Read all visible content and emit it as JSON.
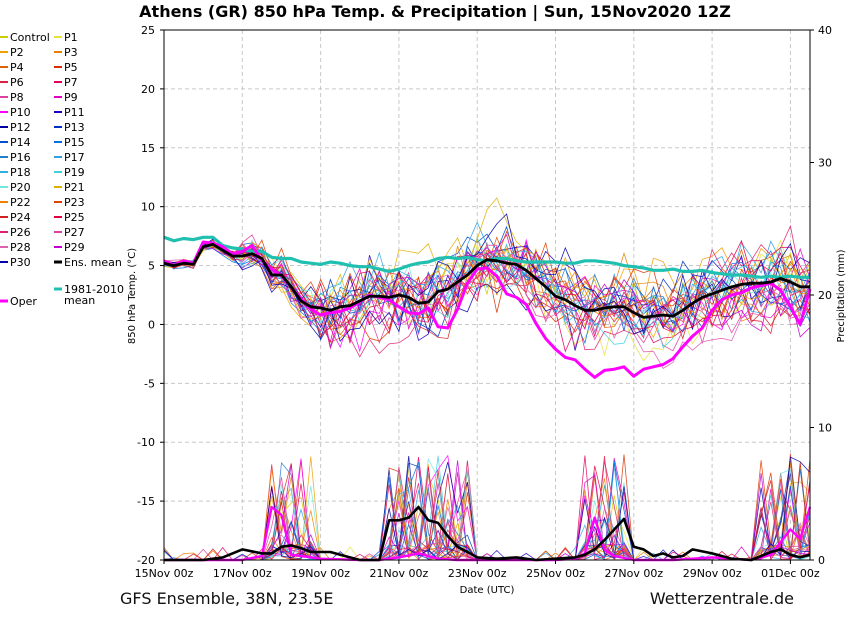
{
  "title": "Athens  (GR)  850 hPa Temp. & Precipitation | Sun, 15Nov2020 12Z",
  "footer": {
    "left": "GFS Ensemble, 38N, 23.5E",
    "right": "Wetterzentrale.de"
  },
  "colors": {
    "ens_mean": "#000000",
    "climate_mean": "#20c0b0",
    "oper": "#ff00ff",
    "grid": "#c8c8c8"
  },
  "chart_data": {
    "type": "line",
    "title": "Athens  (GR)  850 hPa Temp. & Precipitation | Sun, 15Nov2020 12Z",
    "xlabel": "Date (UTC)",
    "ylabel_left": "850 hPa Temp. (°C)",
    "ylabel_right": "Precipitation (mm)",
    "ylim_left": [
      -20,
      25
    ],
    "ylim_right": [
      0,
      40
    ],
    "xlim_days": [
      0,
      16.5
    ],
    "x_tick_labels": [
      "15Nov 00z",
      "17Nov 00z",
      "19Nov 00z",
      "21Nov 00z",
      "23Nov 00z",
      "25Nov 00z",
      "27Nov 00z",
      "29Nov 00z",
      "01Dec 00z"
    ],
    "y_ticks_left": [
      25,
      20,
      15,
      10,
      5,
      0,
      -5,
      -10,
      -15,
      -20
    ],
    "y_ticks_right": [
      40,
      30,
      20,
      10,
      0
    ],
    "grid": true,
    "legend_position": "left",
    "legend": [
      {
        "label": "Control",
        "color": "#cccc00"
      },
      {
        "label": "P1",
        "color": "#e8e040"
      },
      {
        "label": "P2",
        "color": "#f0a000"
      },
      {
        "label": "P3",
        "color": "#e88000"
      },
      {
        "label": "P4",
        "color": "#e06000"
      },
      {
        "label": "P5",
        "color": "#d83000"
      },
      {
        "label": "P6",
        "color": "#e02040"
      },
      {
        "label": "P7",
        "color": "#e00060"
      },
      {
        "label": "P8",
        "color": "#e040a0"
      },
      {
        "label": "P9",
        "color": "#e000c0"
      },
      {
        "label": "P10",
        "color": "#ff00ff"
      },
      {
        "label": "P11",
        "color": "#2000c0"
      },
      {
        "label": "P12",
        "color": "#0000a0"
      },
      {
        "label": "P13",
        "color": "#0030c0"
      },
      {
        "label": "P14",
        "color": "#0050d0"
      },
      {
        "label": "P15",
        "color": "#0070e0"
      },
      {
        "label": "P16",
        "color": "#2080d0"
      },
      {
        "label": "P17",
        "color": "#30a0e0"
      },
      {
        "label": "P18",
        "color": "#30b0e0"
      },
      {
        "label": "P19",
        "color": "#40d0e0"
      },
      {
        "label": "P20",
        "color": "#70e8e0"
      },
      {
        "label": "P21",
        "color": "#e0b000"
      },
      {
        "label": "P22",
        "color": "#f08000"
      },
      {
        "label": "P23",
        "color": "#e04000"
      },
      {
        "label": "P24",
        "color": "#d02020"
      },
      {
        "label": "P25",
        "color": "#e00040"
      },
      {
        "label": "P26",
        "color": "#e02070"
      },
      {
        "label": "P27",
        "color": "#e040a0"
      },
      {
        "label": "P28",
        "color": "#e060b0"
      },
      {
        "label": "P29",
        "color": "#c000d0"
      },
      {
        "label": "P30",
        "color": "#0000b0"
      },
      {
        "label": "Ens. mean",
        "color": "#000000"
      },
      {
        "label": "1981-2010 mean",
        "color": "#20c0b0"
      },
      {
        "label": "Oper",
        "color": "#ff00ff"
      }
    ],
    "series": [
      {
        "name": "Ens. mean",
        "x": [
          0,
          0.25,
          0.5,
          0.75,
          1,
          1.25,
          1.5,
          1.75,
          2,
          2.25,
          2.5,
          2.75,
          3,
          3.25,
          3.5,
          3.75,
          4,
          4.25,
          4.5,
          4.75,
          5,
          5.25,
          5.5,
          5.75,
          6,
          6.25,
          6.5,
          6.75,
          7,
          7.25,
          7.5,
          7.75,
          8,
          8.25,
          8.5,
          8.75,
          9,
          9.25,
          9.5,
          9.75,
          10,
          10.25,
          10.5,
          10.75,
          11,
          11.25,
          11.5,
          11.75,
          12,
          12.25,
          12.5,
          12.75,
          13,
          13.25,
          13.5,
          13.75,
          14,
          14.25,
          14.5,
          14.75,
          15,
          15.25,
          15.5,
          15.75,
          16,
          16.25,
          16.5
        ],
        "y": [
          5.2,
          5,
          5.2,
          5.1,
          6.6,
          6.8,
          6.3,
          5.8,
          5.8,
          6,
          5.6,
          4.2,
          4.2,
          3.2,
          2,
          1.5,
          1.4,
          1.2,
          1.5,
          1.6,
          2,
          2.4,
          2.4,
          2.3,
          2.5,
          2.3,
          1.8,
          1.9,
          2.8,
          3,
          3.6,
          4.2,
          5,
          5.5,
          5.4,
          5.2,
          5.1,
          4.6,
          3.9,
          3.2,
          2.4,
          2.1,
          1.6,
          1.2,
          1.2,
          1.4,
          1.5,
          1.5,
          1,
          0.6,
          0.7,
          0.8,
          0.7,
          1.2,
          1.8,
          2.3,
          2.6,
          2.9,
          3.2,
          3.4,
          3.5,
          3.5,
          3.6,
          3.9,
          3.6,
          3.2,
          3.2
        ]
      },
      {
        "name": "1981-2010 mean",
        "x": [
          0,
          0.25,
          0.5,
          0.75,
          1,
          1.25,
          1.5,
          1.75,
          2,
          2.25,
          2.5,
          2.75,
          3,
          3.25,
          3.5,
          3.75,
          4,
          4.25,
          4.5,
          4.75,
          5,
          5.25,
          5.5,
          5.75,
          6,
          6.25,
          6.5,
          6.75,
          7,
          7.25,
          7.5,
          7.75,
          8,
          8.25,
          8.5,
          8.75,
          9,
          9.25,
          9.5,
          9.75,
          10,
          10.25,
          10.5,
          10.75,
          11,
          11.25,
          11.5,
          11.75,
          12,
          12.25,
          12.5,
          12.75,
          13,
          13.25,
          13.5,
          13.75,
          14,
          14.25,
          14.5,
          14.75,
          15,
          15.25,
          15.5,
          15.75,
          16,
          16.25,
          16.5
        ],
        "y": [
          7.4,
          7.1,
          7.3,
          7.2,
          7.4,
          7.4,
          6.7,
          6.5,
          6.4,
          6.2,
          6.2,
          5.7,
          5.6,
          5.6,
          5.3,
          5.2,
          5.1,
          5.3,
          5.2,
          5,
          4.9,
          4.9,
          4.7,
          4.5,
          4.7,
          5,
          5.2,
          5.3,
          5.6,
          5.7,
          5.6,
          5.7,
          5.5,
          5.4,
          5.6,
          5.6,
          5.4,
          5.3,
          5.3,
          5.3,
          5.3,
          5.2,
          5.2,
          5.4,
          5.4,
          5.3,
          5.2,
          5,
          4.9,
          4.8,
          4.6,
          4.6,
          4.7,
          4.5,
          4.5,
          4.6,
          4.4,
          4.3,
          4.2,
          4.2,
          4.1,
          4,
          4.1,
          4,
          4.1,
          4,
          4
        ]
      },
      {
        "name": "Oper",
        "x": [
          0,
          0.25,
          0.5,
          0.75,
          1,
          1.25,
          1.5,
          1.75,
          2,
          2.25,
          2.5,
          2.75,
          3,
          3.25,
          3.5,
          3.75,
          4,
          4.25,
          4.5,
          4.75,
          5,
          5.25,
          5.5,
          5.75,
          6,
          6.25,
          6.5,
          6.75,
          7,
          7.25,
          7.5,
          7.75,
          8,
          8.25,
          8.5,
          8.75,
          9,
          9.25,
          9.5,
          9.75,
          10,
          10.25,
          10.5,
          10.75,
          11,
          11.25,
          11.5,
          11.75,
          12,
          12.25,
          12.5,
          12.75,
          13,
          13.25,
          13.5,
          13.75,
          14,
          14.25,
          14.5,
          14.75,
          15,
          15.25,
          15.5,
          15.75,
          16,
          16.25,
          16.5
        ],
        "y": [
          5.4,
          5,
          5.4,
          5.2,
          7,
          6.9,
          6.6,
          6,
          6.2,
          6.7,
          5.4,
          4.7,
          4.1,
          3.2,
          2.2,
          1.3,
          0.8,
          1,
          1.1,
          1.4,
          1.9,
          2.5,
          2.3,
          2.1,
          1.5,
          1,
          0.9,
          1.4,
          -0.2,
          -0.3,
          1.3,
          3.5,
          4.7,
          4.8,
          4.1,
          2.6,
          2.3,
          1.7,
          0.1,
          -1.2,
          -2.1,
          -2.8,
          -3,
          -3.8,
          -4.5,
          -3.9,
          -3.8,
          -3.6,
          -4.4,
          -3.8,
          -3.6,
          -3.4,
          -2.9,
          -1.9,
          -1,
          -0.3,
          1.2,
          2.1,
          2.5,
          2.7,
          3.1,
          3.3,
          3.5,
          2.9,
          1.5,
          0,
          3
        ]
      }
    ],
    "precipitation": [
      {
        "name": "Ens. mean",
        "x": [
          0,
          0.5,
          1,
          1.5,
          2,
          2.5,
          2.75,
          3,
          3.25,
          3.5,
          3.75,
          4,
          4.25,
          4.5,
          4.75,
          5,
          5.25,
          5.5,
          5.75,
          6,
          6.25,
          6.5,
          6.75,
          7,
          7.25,
          7.5,
          7.75,
          8,
          8.5,
          9,
          9.5,
          10,
          10.5,
          10.75,
          11,
          11.25,
          11.5,
          11.75,
          12,
          12.25,
          12.5,
          12.75,
          13,
          13.25,
          13.5,
          14,
          14.5,
          15,
          15.25,
          15.5,
          15.75,
          16,
          16.25,
          16.5
        ],
        "y": [
          0,
          0,
          0,
          0.2,
          0.8,
          0.5,
          0.5,
          1,
          1.1,
          0.9,
          0.6,
          0.6,
          0.6,
          0.4,
          0.2,
          0,
          0,
          0,
          3,
          3,
          3.2,
          4,
          3,
          2.8,
          1.8,
          1,
          0.6,
          0.2,
          0.1,
          0.2,
          0,
          0.1,
          0.2,
          0.4,
          0.8,
          1.5,
          2.3,
          3.1,
          1,
          0.8,
          0.3,
          0.5,
          0.2,
          0.3,
          0.8,
          0.5,
          0.1,
          0,
          0.3,
          0.6,
          0.8,
          0.4,
          0.2,
          0.4
        ]
      },
      {
        "name": "Oper",
        "x": [
          0,
          1,
          2,
          2.5,
          2.75,
          3,
          3.25,
          3.5,
          4,
          5,
          5.5,
          6,
          6.5,
          7,
          7.5,
          8,
          9,
          10,
          10.5,
          10.75,
          11,
          11.25,
          11.5,
          12,
          13,
          14,
          15,
          15.5,
          16,
          16.25,
          16.5
        ],
        "y": [
          0,
          0,
          0,
          0.3,
          4,
          3.4,
          0.4,
          0.3,
          0.1,
          0,
          0,
          0.2,
          0.5,
          0.1,
          0,
          0,
          0,
          0,
          0.1,
          0.5,
          3.2,
          0.8,
          0.3,
          0,
          0,
          0.2,
          0,
          0.4,
          2.3,
          1.6,
          4
        ]
      }
    ],
    "members_count": 31
  }
}
